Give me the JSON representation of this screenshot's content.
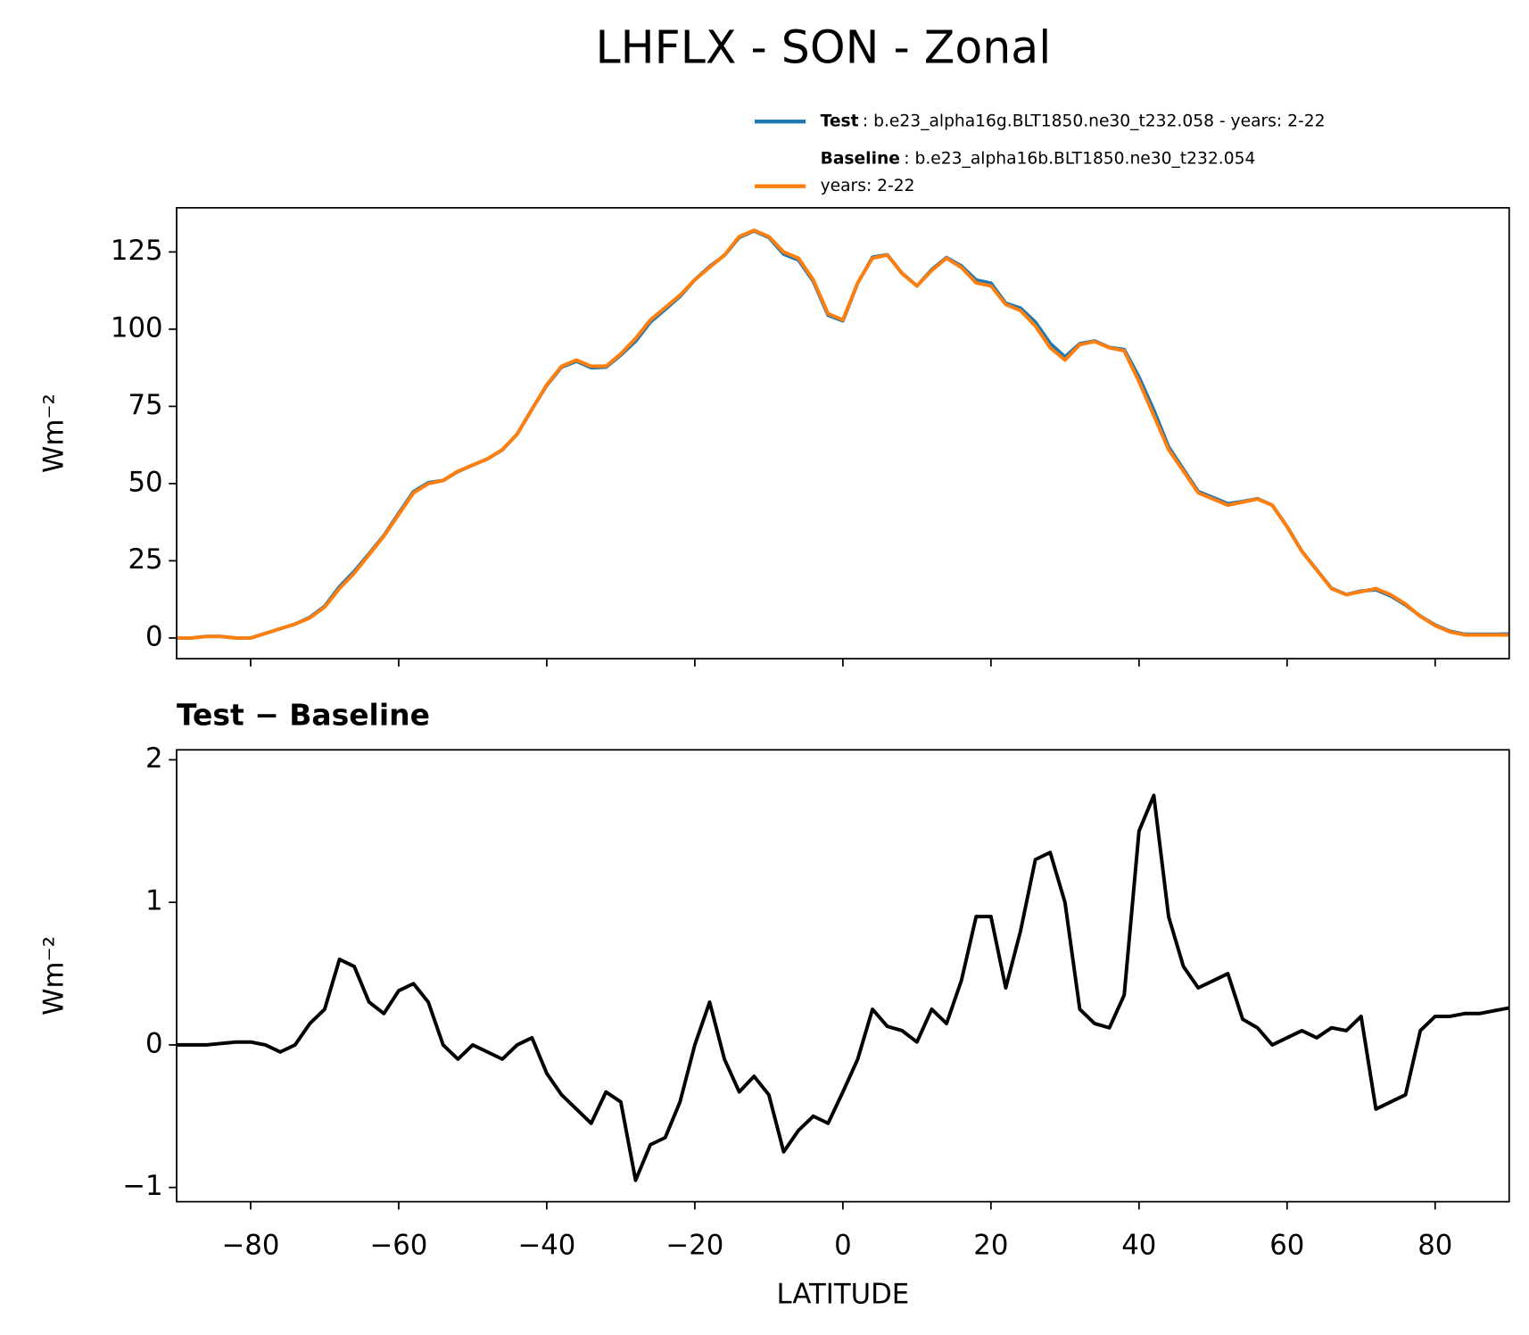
{
  "chart_data": [
    {
      "type": "line",
      "title": "LHFLX - SON - Zonal",
      "ylabel": "Wm⁻²",
      "x": [
        -90,
        -88,
        -86,
        -84,
        -82,
        -80,
        -78,
        -76,
        -74,
        -72,
        -70,
        -68,
        -66,
        -64,
        -62,
        -60,
        -58,
        -56,
        -54,
        -52,
        -50,
        -48,
        -46,
        -44,
        -42,
        -40,
        -38,
        -36,
        -34,
        -32,
        -30,
        -28,
        -26,
        -24,
        -22,
        -20,
        -18,
        -16,
        -14,
        -12,
        -10,
        -8,
        -6,
        -4,
        -2,
        0,
        2,
        4,
        6,
        8,
        10,
        12,
        14,
        16,
        18,
        20,
        22,
        24,
        26,
        28,
        30,
        32,
        34,
        36,
        38,
        40,
        42,
        44,
        46,
        48,
        50,
        52,
        54,
        56,
        58,
        60,
        62,
        64,
        66,
        68,
        70,
        72,
        74,
        76,
        78,
        80,
        82,
        84,
        86,
        88,
        90
      ],
      "series": [
        {
          "name": "Test",
          "description": [
            ": b.e23_alpha16g.BLT1850.ne30_t232.058 - years: 2-22"
          ],
          "color": "#1f77b4",
          "values": [
            0,
            0,
            0.5,
            0.5,
            0,
            0,
            1.5,
            3,
            4.5,
            6.7,
            10.3,
            16.6,
            21.6,
            27.3,
            33.2,
            40.4,
            47.4,
            50.3,
            51,
            53.9,
            56,
            58,
            60.9,
            66,
            74.1,
            81.8,
            87.7,
            89.6,
            87.5,
            87.7,
            91.6,
            96.1,
            102.3,
            106.4,
            110.6,
            116,
            120.3,
            123.9,
            129.7,
            131.8,
            129.7,
            124.3,
            122.4,
            115.5,
            104.5,
            102.7,
            114.9,
            123.3,
            124.1,
            118.1,
            114,
            119.3,
            123.2,
            120.5,
            115.9,
            114.9,
            108.4,
            106.8,
            102.3,
            95.4,
            91,
            95.3,
            96.2,
            94.1,
            93.4,
            84.5,
            73.8,
            61.9,
            54.6,
            47.4,
            45.5,
            43.5,
            44.2,
            45.1,
            43,
            36.1,
            28.1,
            22.1,
            16.1,
            14.1,
            15.2,
            15.6,
            13.6,
            10.7,
            7.1,
            4.2,
            2.2,
            1.2,
            1.2,
            1.2,
            1.3
          ]
        },
        {
          "name": "Baseline",
          "description": [
            ": b.e23_alpha16b.BLT1850.ne30_t232.054",
            "years: 2-22"
          ],
          "color": "#ff7f0e",
          "values": [
            0,
            0,
            0.5,
            0.5,
            0,
            0,
            1.5,
            3,
            4.5,
            6.5,
            10,
            16,
            21,
            27,
            33,
            40,
            47,
            50,
            51,
            54,
            56,
            58,
            61,
            66,
            74,
            82,
            88,
            90,
            88,
            88,
            92,
            97,
            103,
            107,
            111,
            116,
            120,
            124,
            130,
            132,
            130,
            125,
            123,
            116,
            105,
            103,
            115,
            123,
            124,
            118,
            114,
            119,
            123,
            120,
            115,
            114,
            108,
            106,
            101,
            94,
            90,
            95,
            96,
            94,
            93,
            83,
            72,
            61,
            54,
            47,
            45,
            43,
            44,
            45,
            43,
            36,
            28,
            22,
            16,
            14,
            15,
            16,
            14,
            11,
            7,
            4,
            2,
            1,
            1,
            1,
            1
          ]
        }
      ],
      "xlim": [
        -90,
        90
      ],
      "xticks": [
        -80,
        -60,
        -40,
        -20,
        0,
        20,
        40,
        60,
        80
      ],
      "ylim": [
        -6.7,
        139.3
      ],
      "yticks": [
        0,
        25,
        50,
        75,
        100,
        125
      ]
    },
    {
      "type": "line",
      "title": "Test − Baseline",
      "ylabel": "Wm⁻²",
      "xlabel": "LATITUDE",
      "x": [
        -90,
        -88,
        -86,
        -84,
        -82,
        -80,
        -78,
        -76,
        -74,
        -72,
        -70,
        -68,
        -66,
        -64,
        -62,
        -60,
        -58,
        -56,
        -54,
        -52,
        -50,
        -48,
        -46,
        -44,
        -42,
        -40,
        -38,
        -36,
        -34,
        -32,
        -30,
        -28,
        -26,
        -24,
        -22,
        -20,
        -18,
        -16,
        -14,
        -12,
        -10,
        -8,
        -6,
        -4,
        -2,
        0,
        2,
        4,
        6,
        8,
        10,
        12,
        14,
        16,
        18,
        20,
        22,
        24,
        26,
        28,
        30,
        32,
        34,
        36,
        38,
        40,
        42,
        44,
        46,
        48,
        50,
        52,
        54,
        56,
        58,
        60,
        62,
        64,
        66,
        68,
        70,
        72,
        74,
        76,
        78,
        80,
        82,
        84,
        86,
        88,
        90
      ],
      "series": [
        {
          "color": "#000000",
          "values": [
            0,
            0,
            0,
            0.01,
            0.02,
            0.02,
            0,
            -0.05,
            0,
            0.15,
            0.25,
            0.6,
            0.55,
            0.3,
            0.22,
            0.38,
            0.43,
            0.3,
            0,
            -0.1,
            0,
            -0.05,
            -0.1,
            0,
            0.05,
            -0.2,
            -0.35,
            -0.45,
            -0.55,
            -0.33,
            -0.4,
            -0.95,
            -0.7,
            -0.65,
            -0.4,
            0,
            0.3,
            -0.1,
            -0.33,
            -0.22,
            -0.35,
            -0.75,
            -0.6,
            -0.5,
            -0.55,
            -0.33,
            -0.1,
            0.25,
            0.13,
            0.1,
            0.02,
            0.25,
            0.15,
            0.45,
            0.9,
            0.9,
            0.4,
            0.8,
            1.3,
            1.35,
            1,
            0.25,
            0.15,
            0.12,
            0.35,
            1.5,
            1.75,
            0.9,
            0.55,
            0.4,
            0.45,
            0.5,
            0.18,
            0.12,
            0,
            0.05,
            0.1,
            0.05,
            0.12,
            0.1,
            0.2,
            -0.45,
            -0.4,
            -0.35,
            0.1,
            0.2,
            0.2,
            0.22,
            0.22,
            0.24,
            0.26
          ]
        }
      ],
      "xlim": [
        -90,
        90
      ],
      "xticks": [
        {
          "value": -80,
          "label": "−80"
        },
        {
          "value": -60,
          "label": "−60"
        },
        {
          "value": -40,
          "label": "−40"
        },
        {
          "value": -20,
          "label": "−20"
        },
        0,
        20,
        40,
        60,
        80
      ],
      "ylim": [
        -1.1,
        2.07
      ],
      "yticks": [
        {
          "value": -1,
          "label": "−1"
        },
        0,
        1,
        2
      ]
    }
  ]
}
